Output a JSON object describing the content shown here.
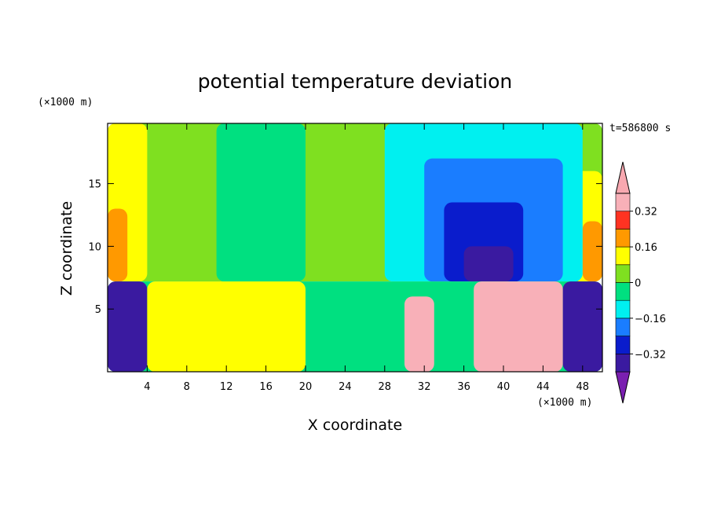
{
  "chart_data": {
    "type": "heatmap",
    "title": "potential temperature deviation",
    "xlabel": "X coordinate",
    "ylabel": "Z coordinate",
    "x_unit": "(×1000 m)",
    "y_unit": "(×1000 m)",
    "time_label": "t=586800 s",
    "xlim": [
      0,
      50
    ],
    "ylim": [
      0,
      19.8
    ],
    "x_ticks": [
      4,
      8,
      12,
      16,
      20,
      24,
      28,
      32,
      36,
      40,
      44,
      48
    ],
    "y_ticks": [
      5,
      10,
      15
    ],
    "colorbar": {
      "levels": [
        -0.4,
        -0.32,
        -0.24,
        -0.16,
        -0.08,
        0,
        0.08,
        0.16,
        0.24,
        0.32,
        0.4
      ],
      "tick_labels": [
        {
          "value": 0.32,
          "label": "0.32"
        },
        {
          "value": 0.16,
          "label": "0.16"
        },
        {
          "value": 0,
          "label": "0"
        },
        {
          "value": -0.16,
          "label": "-0.16"
        },
        {
          "value": -0.32,
          "label": "-0.32"
        }
      ],
      "colors": [
        "#7a1fb0",
        "#3a1aa0",
        "#0a1ccc",
        "#1a7dff",
        "#00f0f0",
        "#00e080",
        "#7fe020",
        "#ffff00",
        "#ff9900",
        "#ff3322",
        "#f8b0b8",
        "#f8a8b0"
      ]
    },
    "regions": [
      {
        "x": [
          0,
          50
        ],
        "z": [
          7.2,
          19.8
        ],
        "value": 0.02
      },
      {
        "x": [
          0,
          4
        ],
        "z": [
          7.2,
          19.8
        ],
        "value": 0.12
      },
      {
        "x": [
          0,
          2
        ],
        "z": [
          7.2,
          13
        ],
        "value": 0.2
      },
      {
        "x": [
          47,
          50
        ],
        "z": [
          7.2,
          16
        ],
        "value": 0.14
      },
      {
        "x": [
          48,
          50
        ],
        "z": [
          7.2,
          12
        ],
        "value": 0.22
      },
      {
        "x": [
          11,
          20
        ],
        "z": [
          7.2,
          19.8
        ],
        "value": -0.04
      },
      {
        "x": [
          28,
          48
        ],
        "z": [
          7.2,
          19.8
        ],
        "value": -0.1
      },
      {
        "x": [
          32,
          46
        ],
        "z": [
          7.2,
          17
        ],
        "value": -0.18
      },
      {
        "x": [
          34,
          42
        ],
        "z": [
          7.2,
          13.5
        ],
        "value": -0.28
      },
      {
        "x": [
          36,
          41
        ],
        "z": [
          7.2,
          10
        ],
        "value": -0.36
      },
      {
        "x": [
          0,
          50
        ],
        "z": [
          0,
          7.2
        ],
        "value": -0.08
      },
      {
        "x": [
          0,
          4
        ],
        "z": [
          0,
          7.2
        ],
        "value": -0.36
      },
      {
        "x": [
          46,
          50
        ],
        "z": [
          0,
          7.2
        ],
        "value": -0.36
      },
      {
        "x": [
          30,
          33
        ],
        "z": [
          0,
          6
        ],
        "value": 0.36
      },
      {
        "x": [
          37,
          46
        ],
        "z": [
          0,
          7.2
        ],
        "value": 0.36
      },
      {
        "x": [
          4,
          20
        ],
        "z": [
          0,
          7.2
        ],
        "value": 0.12
      }
    ]
  }
}
